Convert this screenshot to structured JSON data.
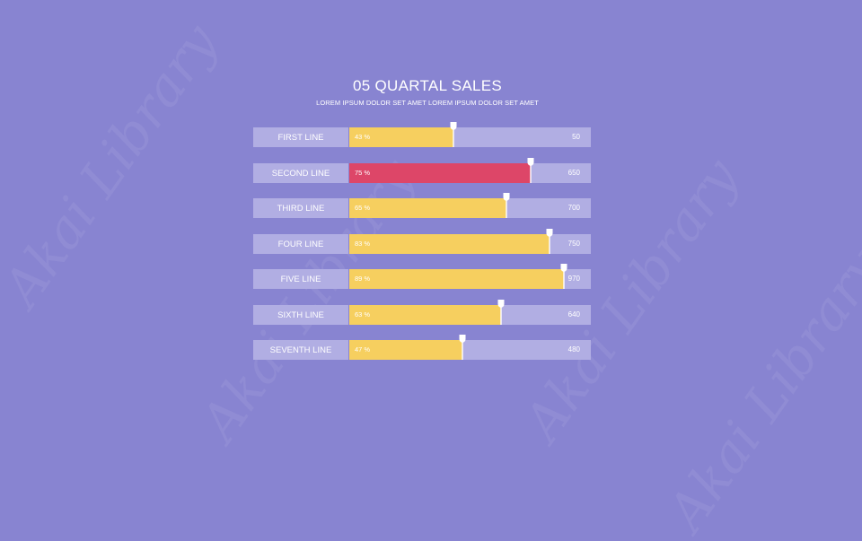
{
  "watermark_text": "Akai Library",
  "title": "05  QUARTAL SALES",
  "subtitle": "LOREM IPSUM DOLOR SET AMET LOREM IPSUM DOLOR SET AMET",
  "colors": {
    "background": "#8884d1",
    "track": "#b1aee3",
    "bar_default": "#f6cf5f",
    "bar_highlight": "#dd4668",
    "marker": "#ffffff"
  },
  "chart_data": {
    "type": "bar",
    "orientation": "horizontal",
    "title": "05  QUARTAL SALES",
    "subtitle": "LOREM IPSUM DOLOR SET AMET LOREM IPSUM DOLOR SET AMET",
    "xlim": [
      0,
      100
    ],
    "categories": [
      "FIRST LINE",
      "SECOND LINE",
      "THIRD LINE",
      "FOUR LINE",
      "FIVE LINE",
      "SIXTH LINE",
      "SEVENTH LINE"
    ],
    "series": [
      {
        "values": [
          43,
          75,
          65,
          83,
          89,
          63,
          47
        ]
      }
    ],
    "percent_labels": [
      "43 %",
      "75 %",
      "65 %",
      "83 %",
      "89 %",
      "63 %",
      "47 %"
    ],
    "end_labels": [
      "50",
      "650",
      "700",
      "750",
      "970",
      "640",
      "480"
    ],
    "highlight_index": 1
  }
}
